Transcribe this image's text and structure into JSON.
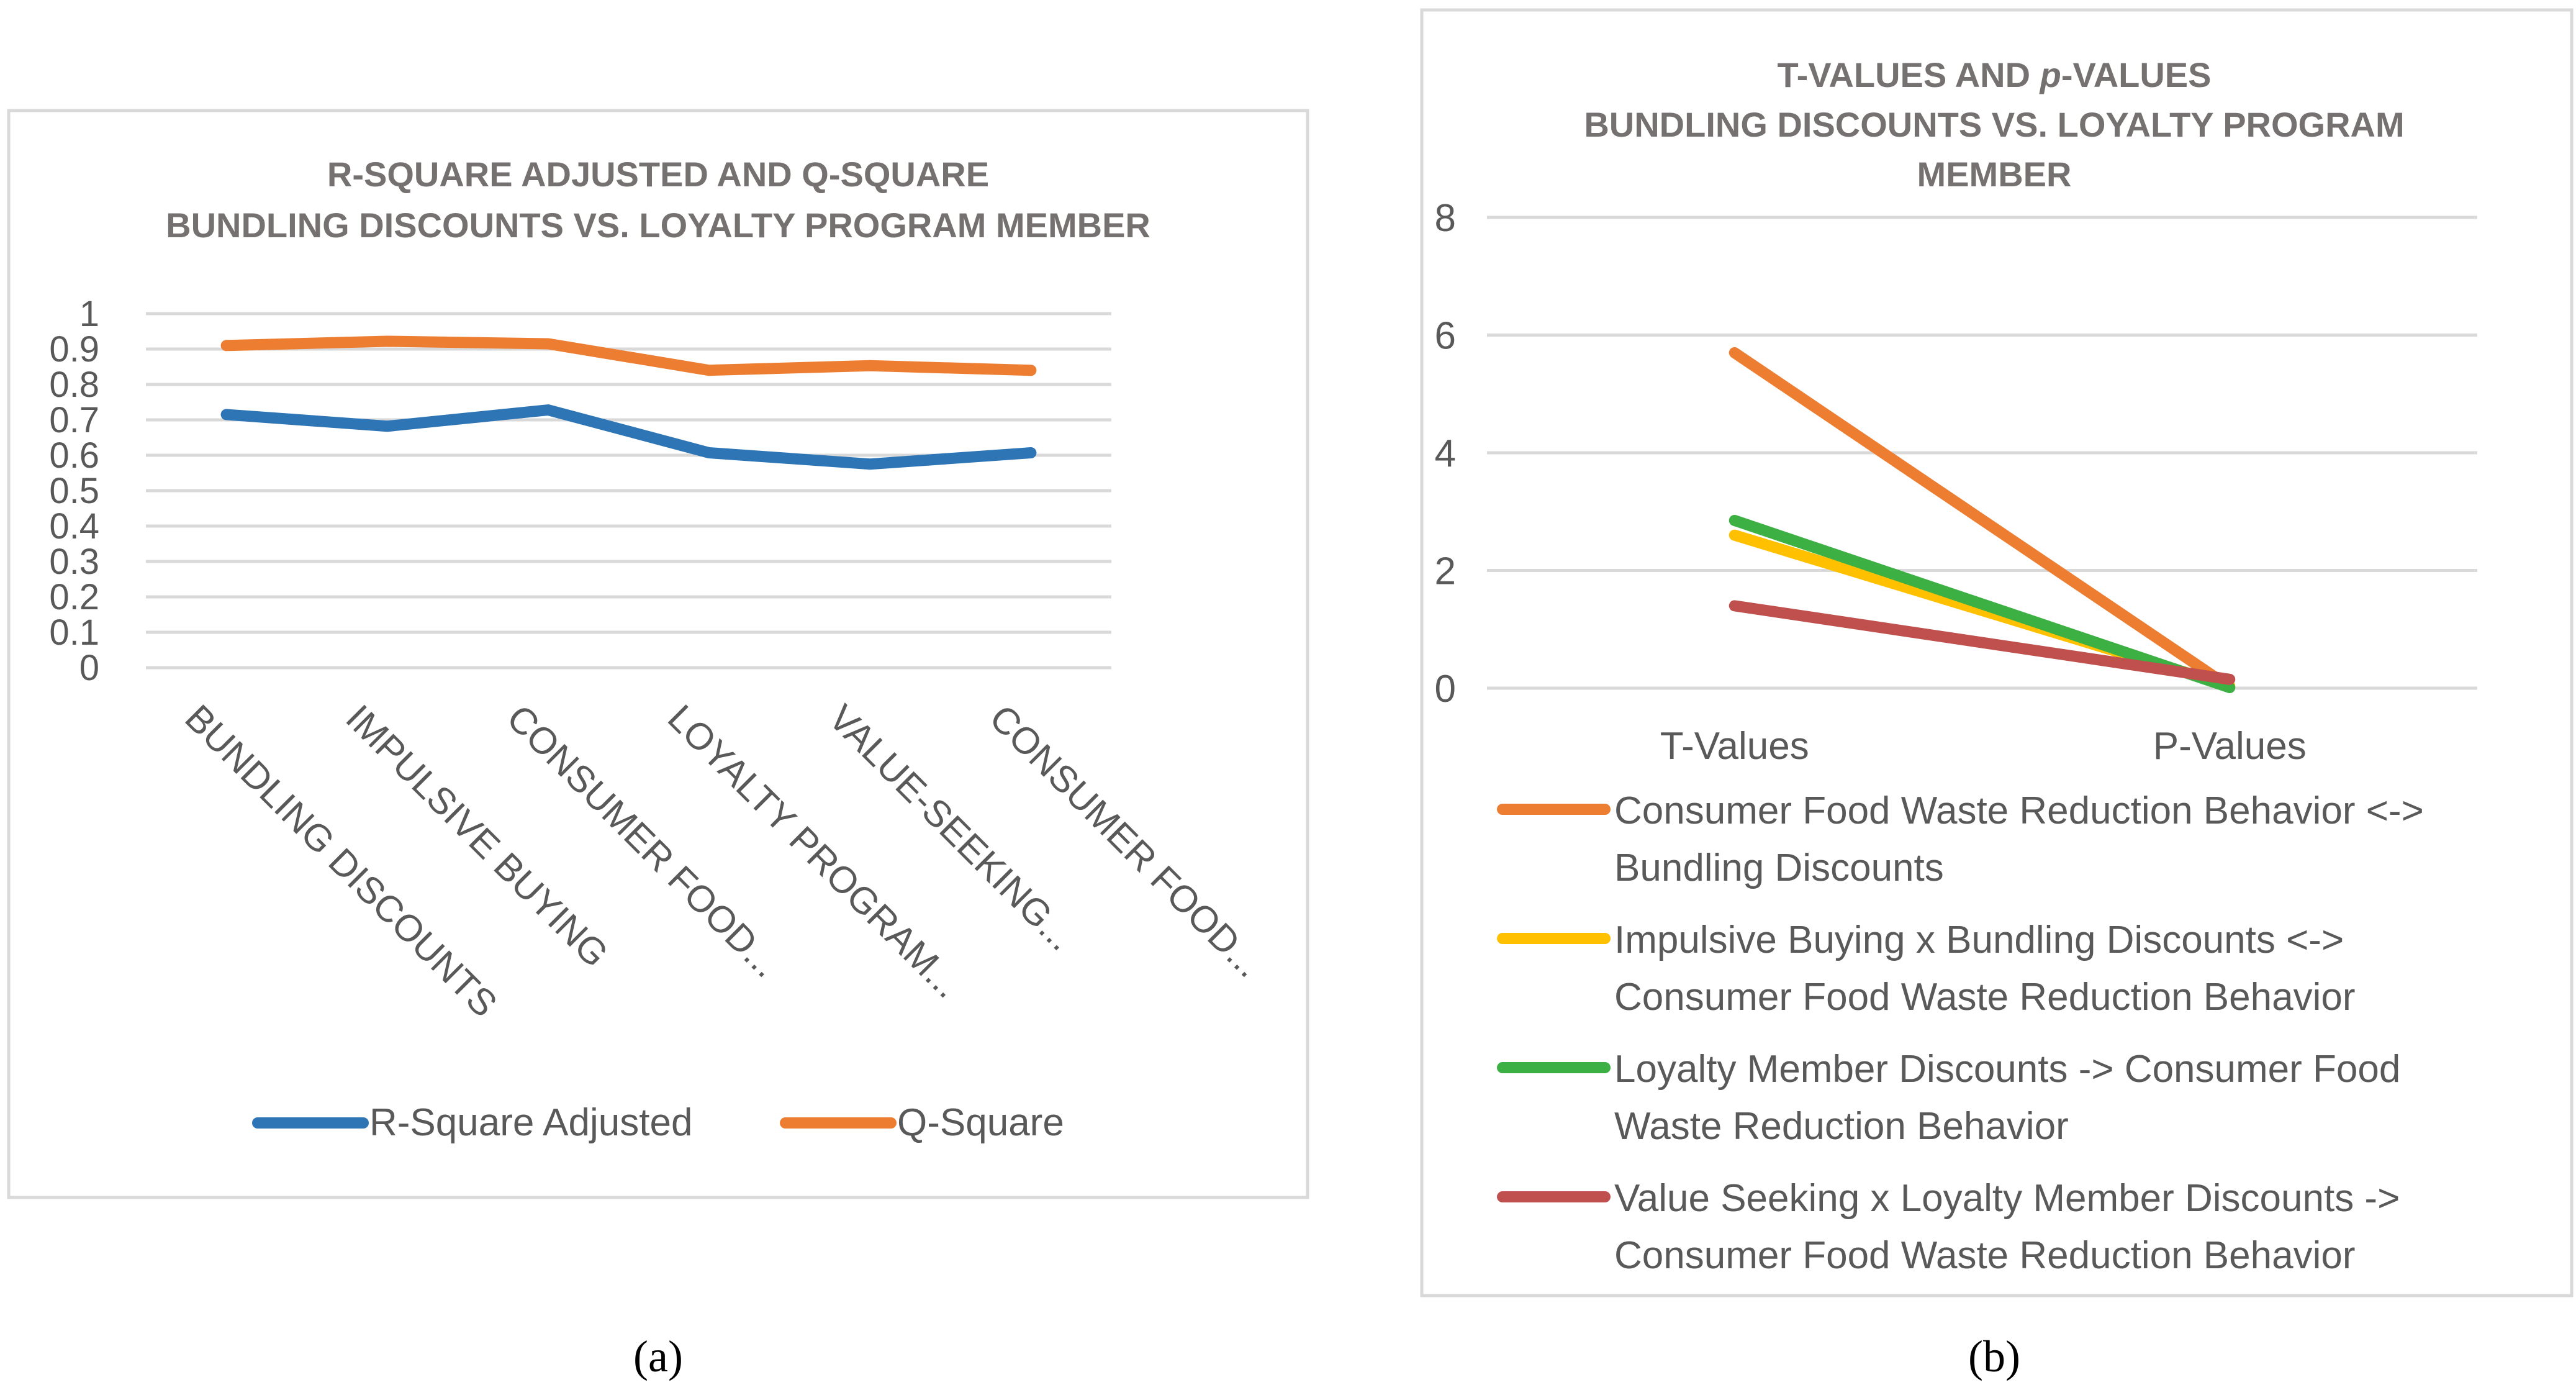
{
  "chart_data": [
    {
      "type": "line",
      "panel_label": "(a)",
      "title_lines": [
        "R-SQUARE ADJUSTED AND Q-SQUARE",
        "BUNDLING DISCOUNTS VS. LOYALTY PROGRAM MEMBER"
      ],
      "categories": [
        "BUNDLING DISCOUNTS",
        "IMPULSIVE BUYING",
        "CONSUMER FOOD...",
        "LOYALTY PROGRAM...",
        "VALUE-SEEKING...",
        "CONSUMER FOOD..."
      ],
      "y_ticks": [
        "0",
        "0.1",
        "0.2",
        "0.3",
        "0.4",
        "0.5",
        "0.6",
        "0.7",
        "0.8",
        "0.9",
        "1"
      ],
      "ylim": [
        0,
        1
      ],
      "grid": true,
      "legend_position": "bottom",
      "series": [
        {
          "name": "R-Square Adjusted",
          "color": "#2e75b6",
          "values": [
            0.715,
            0.682,
            0.728,
            0.607,
            0.575,
            0.607
          ]
        },
        {
          "name": "Q-Square",
          "color": "#ed7d31",
          "values": [
            0.91,
            0.922,
            0.915,
            0.84,
            0.853,
            0.84
          ]
        }
      ]
    },
    {
      "type": "line",
      "panel_label": "(b)",
      "title_lines": [
        "T-VALUES AND p-VALUES",
        "BUNDLING DISCOUNTS VS. LOYALTY PROGRAM",
        "MEMBER"
      ],
      "title_p": "p",
      "categories": [
        "T-Values",
        "P-Values"
      ],
      "y_ticks": [
        "0",
        "2",
        "4",
        "6",
        "8"
      ],
      "ylim": [
        0,
        8
      ],
      "grid": true,
      "legend_position": "bottom",
      "series": [
        {
          "name_lines": [
            "Consumer Food Waste Reduction Behavior <->",
            "Bundling Discounts"
          ],
          "color": "#ed7d31",
          "values": [
            5.7,
            0.02
          ]
        },
        {
          "name_lines": [
            "Impulsive Buying x Bundling Discounts <->",
            "Consumer Food Waste Reduction Behavior"
          ],
          "color": "#ffc000",
          "values": [
            2.6,
            0.04
          ]
        },
        {
          "name_lines": [
            "Loyalty Member Discounts -> Consumer Food",
            "Waste Reduction Behavior"
          ],
          "color": "#3cb043",
          "values": [
            2.85,
            0.01
          ]
        },
        {
          "name_lines": [
            "Value Seeking x Loyalty Member Discounts ->",
            "Consumer Food Waste Reduction Behavior"
          ],
          "color": "#c0504d",
          "values": [
            1.4,
            0.15
          ]
        }
      ]
    }
  ]
}
